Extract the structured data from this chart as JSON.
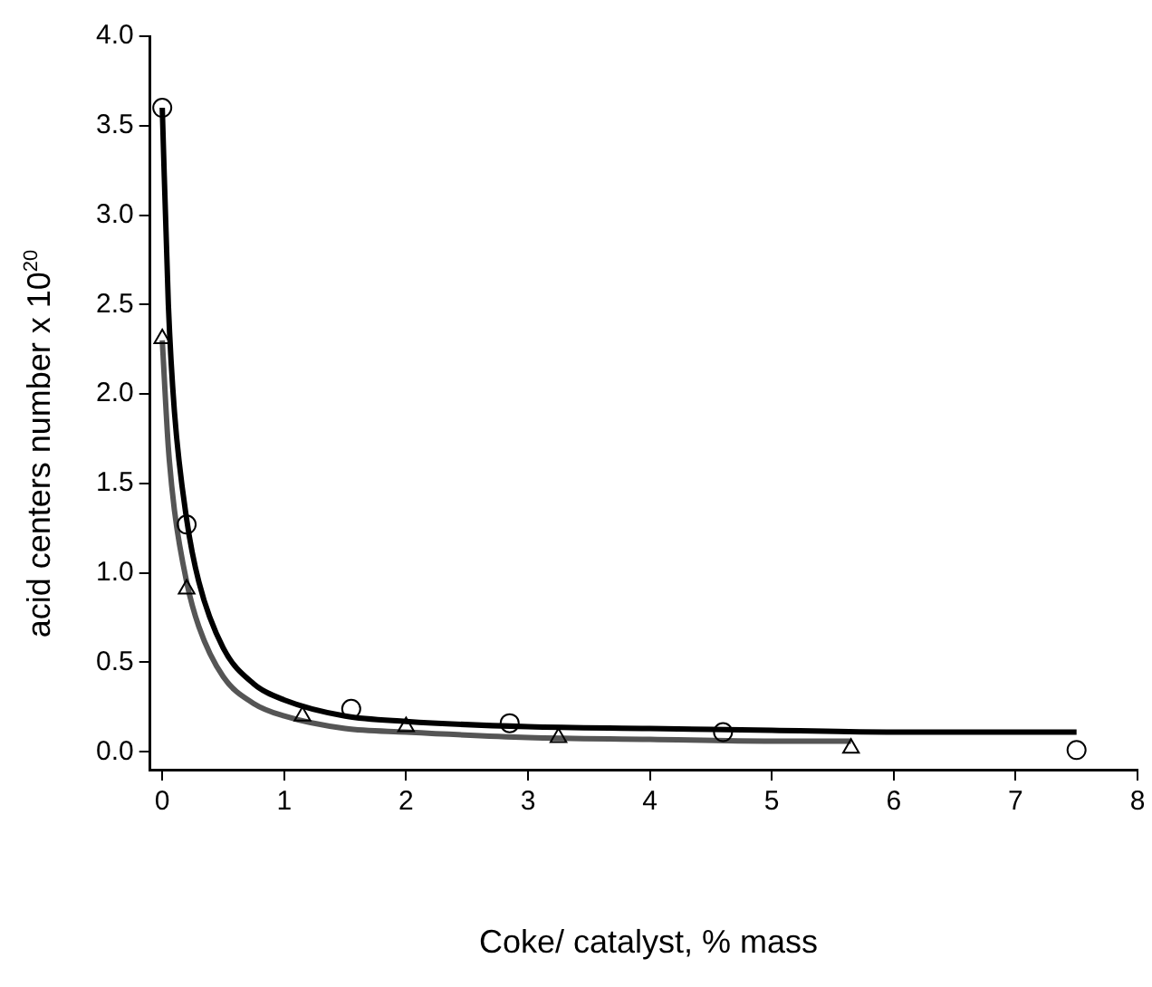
{
  "chart_data": {
    "type": "scatter",
    "xlabel": "Coke/ catalyst, % mass",
    "ylabel": "acid centers number x 10$^{20}$",
    "xlim": [
      -0.1,
      8
    ],
    "xticks": [
      0,
      1,
      2,
      3,
      4,
      5,
      6,
      7,
      8
    ],
    "ylim": [
      -0.1,
      4.0
    ],
    "yticks": [
      {
        "value": 0,
        "label": "0.0"
      },
      {
        "value": 0.5,
        "label": "0.5"
      },
      {
        "value": 1,
        "label": "1.0"
      },
      {
        "value": 1.5,
        "label": "1.5"
      },
      {
        "value": 2,
        "label": "2.0"
      },
      {
        "value": 2.5,
        "label": "2.5"
      },
      {
        "value": 3,
        "label": "3.0"
      },
      {
        "value": 3.5,
        "label": "3.5"
      },
      {
        "value": 4,
        "label": "4.0"
      }
    ],
    "grid": false,
    "legend": false,
    "series": [
      {
        "marker": "circle",
        "color": "#000000",
        "x": [
          0,
          0.2,
          1.55,
          2.85,
          4.6,
          7.5
        ],
        "values": [
          3.6,
          1.27,
          0.24,
          0.16,
          0.11,
          0.01
        ]
      },
      {
        "marker": "triangle",
        "color": "#000000",
        "x": [
          0,
          0.2,
          1.15,
          2.0,
          3.25,
          5.65
        ],
        "values": [
          2.31,
          0.91,
          0.2,
          0.14,
          0.08,
          0.02
        ]
      },
      {
        "type": "line",
        "marker": "none",
        "color": "#000000",
        "x": [
          0,
          0.05,
          0.1,
          0.2,
          0.3,
          0.5,
          0.75,
          1,
          1.5,
          2,
          3,
          4,
          5,
          6,
          7.5
        ],
        "values": [
          3.6,
          2.5,
          1.9,
          1.3,
          0.95,
          0.58,
          0.38,
          0.29,
          0.2,
          0.17,
          0.14,
          0.13,
          0.12,
          0.11,
          0.11
        ]
      },
      {
        "type": "line",
        "marker": "none",
        "color": "#555555",
        "x": [
          0,
          0.05,
          0.1,
          0.2,
          0.3,
          0.5,
          0.75,
          1,
          1.5,
          2,
          3,
          4,
          5,
          5.65
        ],
        "values": [
          2.3,
          1.7,
          1.35,
          0.95,
          0.7,
          0.42,
          0.27,
          0.2,
          0.13,
          0.11,
          0.08,
          0.07,
          0.06,
          0.06
        ]
      }
    ]
  }
}
